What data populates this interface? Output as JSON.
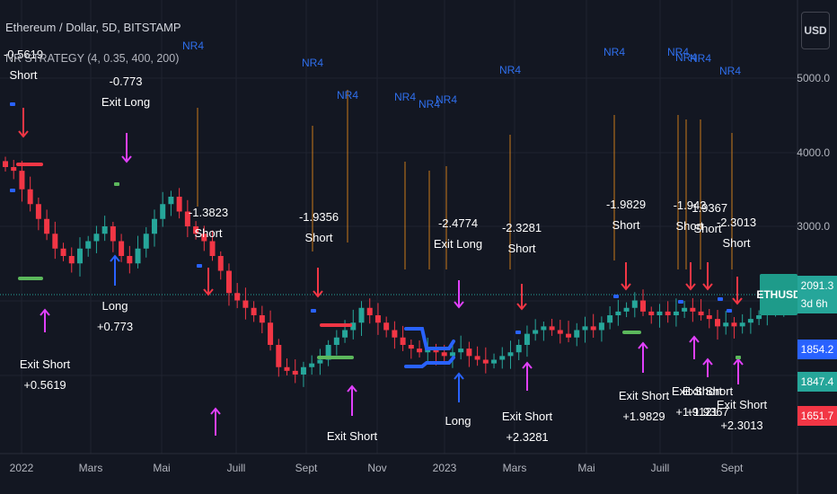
{
  "header": {
    "symbol_line": "Ethereum / Dollar, 5D, BITSTAMP",
    "indicator_line": "NR STRATEGY (4, 0.35, 400, 200)",
    "currency_button": "USD"
  },
  "price_axis": {
    "ticks": [
      "5000.0",
      "4000.0",
      "3000.0"
    ],
    "tags": [
      {
        "label": "2091.3\n3d 6h",
        "color": "#26a69a"
      },
      {
        "label": "1854.2",
        "color": "#2962ff"
      },
      {
        "label": "1847.4",
        "color": "#26a69a"
      },
      {
        "label": "1651.7",
        "color": "#f23645"
      }
    ],
    "symbol_tag": "ETHUSD"
  },
  "time_axis": {
    "ticks": [
      "2022",
      "Mars",
      "Mai",
      "Juill",
      "Sept",
      "Nov",
      "2023",
      "Mars",
      "Mai",
      "Juill",
      "Sept"
    ]
  },
  "chart_data": {
    "type": "candlestick",
    "title": "Ethereum / Dollar, 5D, BITSTAMP",
    "ylim": [
      1000,
      5400
    ],
    "last_price": 2091.3,
    "close_series_approx": [
      3800,
      3750,
      3500,
      3300,
      3100,
      2900,
      2700,
      2600,
      2500,
      2700,
      2800,
      2900,
      3000,
      2800,
      2600,
      2500,
      2700,
      2900,
      3100,
      3300,
      3400,
      3200,
      3000,
      2900,
      2800,
      2600,
      2400,
      2100,
      2000,
      1900,
      1800,
      1700,
      1400,
      1100,
      1050,
      1000,
      1100,
      1150,
      1200,
      1400,
      1500,
      1600,
      1700,
      1900,
      1800,
      1700,
      1600,
      1500,
      1400,
      1350,
      1300,
      1350,
      1300,
      1250,
      1300,
      1350,
      1250,
      1200,
      1150,
      1200,
      1250,
      1300,
      1400,
      1550,
      1600,
      1650,
      1600,
      1550,
      1500,
      1600,
      1650,
      1600,
      1700,
      1800,
      1850,
      1900,
      2000,
      1850,
      1800,
      1850,
      1800,
      1850,
      1900,
      1850,
      1800,
      1750,
      1650,
      1700,
      1650,
      1700,
      1750,
      1800,
      1850,
      1900,
      2000,
      2091
    ],
    "nr4_labels": [
      "NR4",
      "NR4",
      "NR4",
      "NR4",
      "NR4",
      "NR4",
      "NR4",
      "NR4",
      "NR4",
      "NR4",
      "NR4",
      "NR4"
    ],
    "signals": [
      {
        "text": "-0.5619\nShort",
        "kind": "short"
      },
      {
        "text": "-0.773\nExit Long",
        "kind": "exit_long"
      },
      {
        "text": "-1.3823\nShort",
        "kind": "short"
      },
      {
        "text": "-1.9356\nShort",
        "kind": "short"
      },
      {
        "text": "-2.4774\nExit Long",
        "kind": "exit_long"
      },
      {
        "text": "-2.3281\nShort",
        "kind": "short"
      },
      {
        "text": "-1.9829\nShort",
        "kind": "short"
      },
      {
        "text": "-1.943\nShort",
        "kind": "short"
      },
      {
        "text": "-1.9367\nShort",
        "kind": "short"
      },
      {
        "text": "-2.3013\nShort",
        "kind": "short"
      },
      {
        "text": "Exit Short\n+0.5619",
        "kind": "exit_short"
      },
      {
        "text": "Long\n+0.773",
        "kind": "long"
      },
      {
        "text": "Exit Short",
        "kind": "exit_short"
      },
      {
        "text": "Long",
        "kind": "long"
      },
      {
        "text": "Exit Short\n+2.3281",
        "kind": "exit_short"
      },
      {
        "text": "Exit Short\n+1.9829",
        "kind": "exit_short"
      },
      {
        "text": "Exit Short\n+1.9121",
        "kind": "exit_short"
      },
      {
        "text": "Exit Short\n+1.9367",
        "kind": "exit_short"
      },
      {
        "text": "Exit Short\n+2.3013",
        "kind": "exit_short"
      }
    ],
    "colors": {
      "up": "#26a69a",
      "down": "#f23645",
      "nr": "#2f6fed",
      "marker": "#e040fb"
    }
  }
}
